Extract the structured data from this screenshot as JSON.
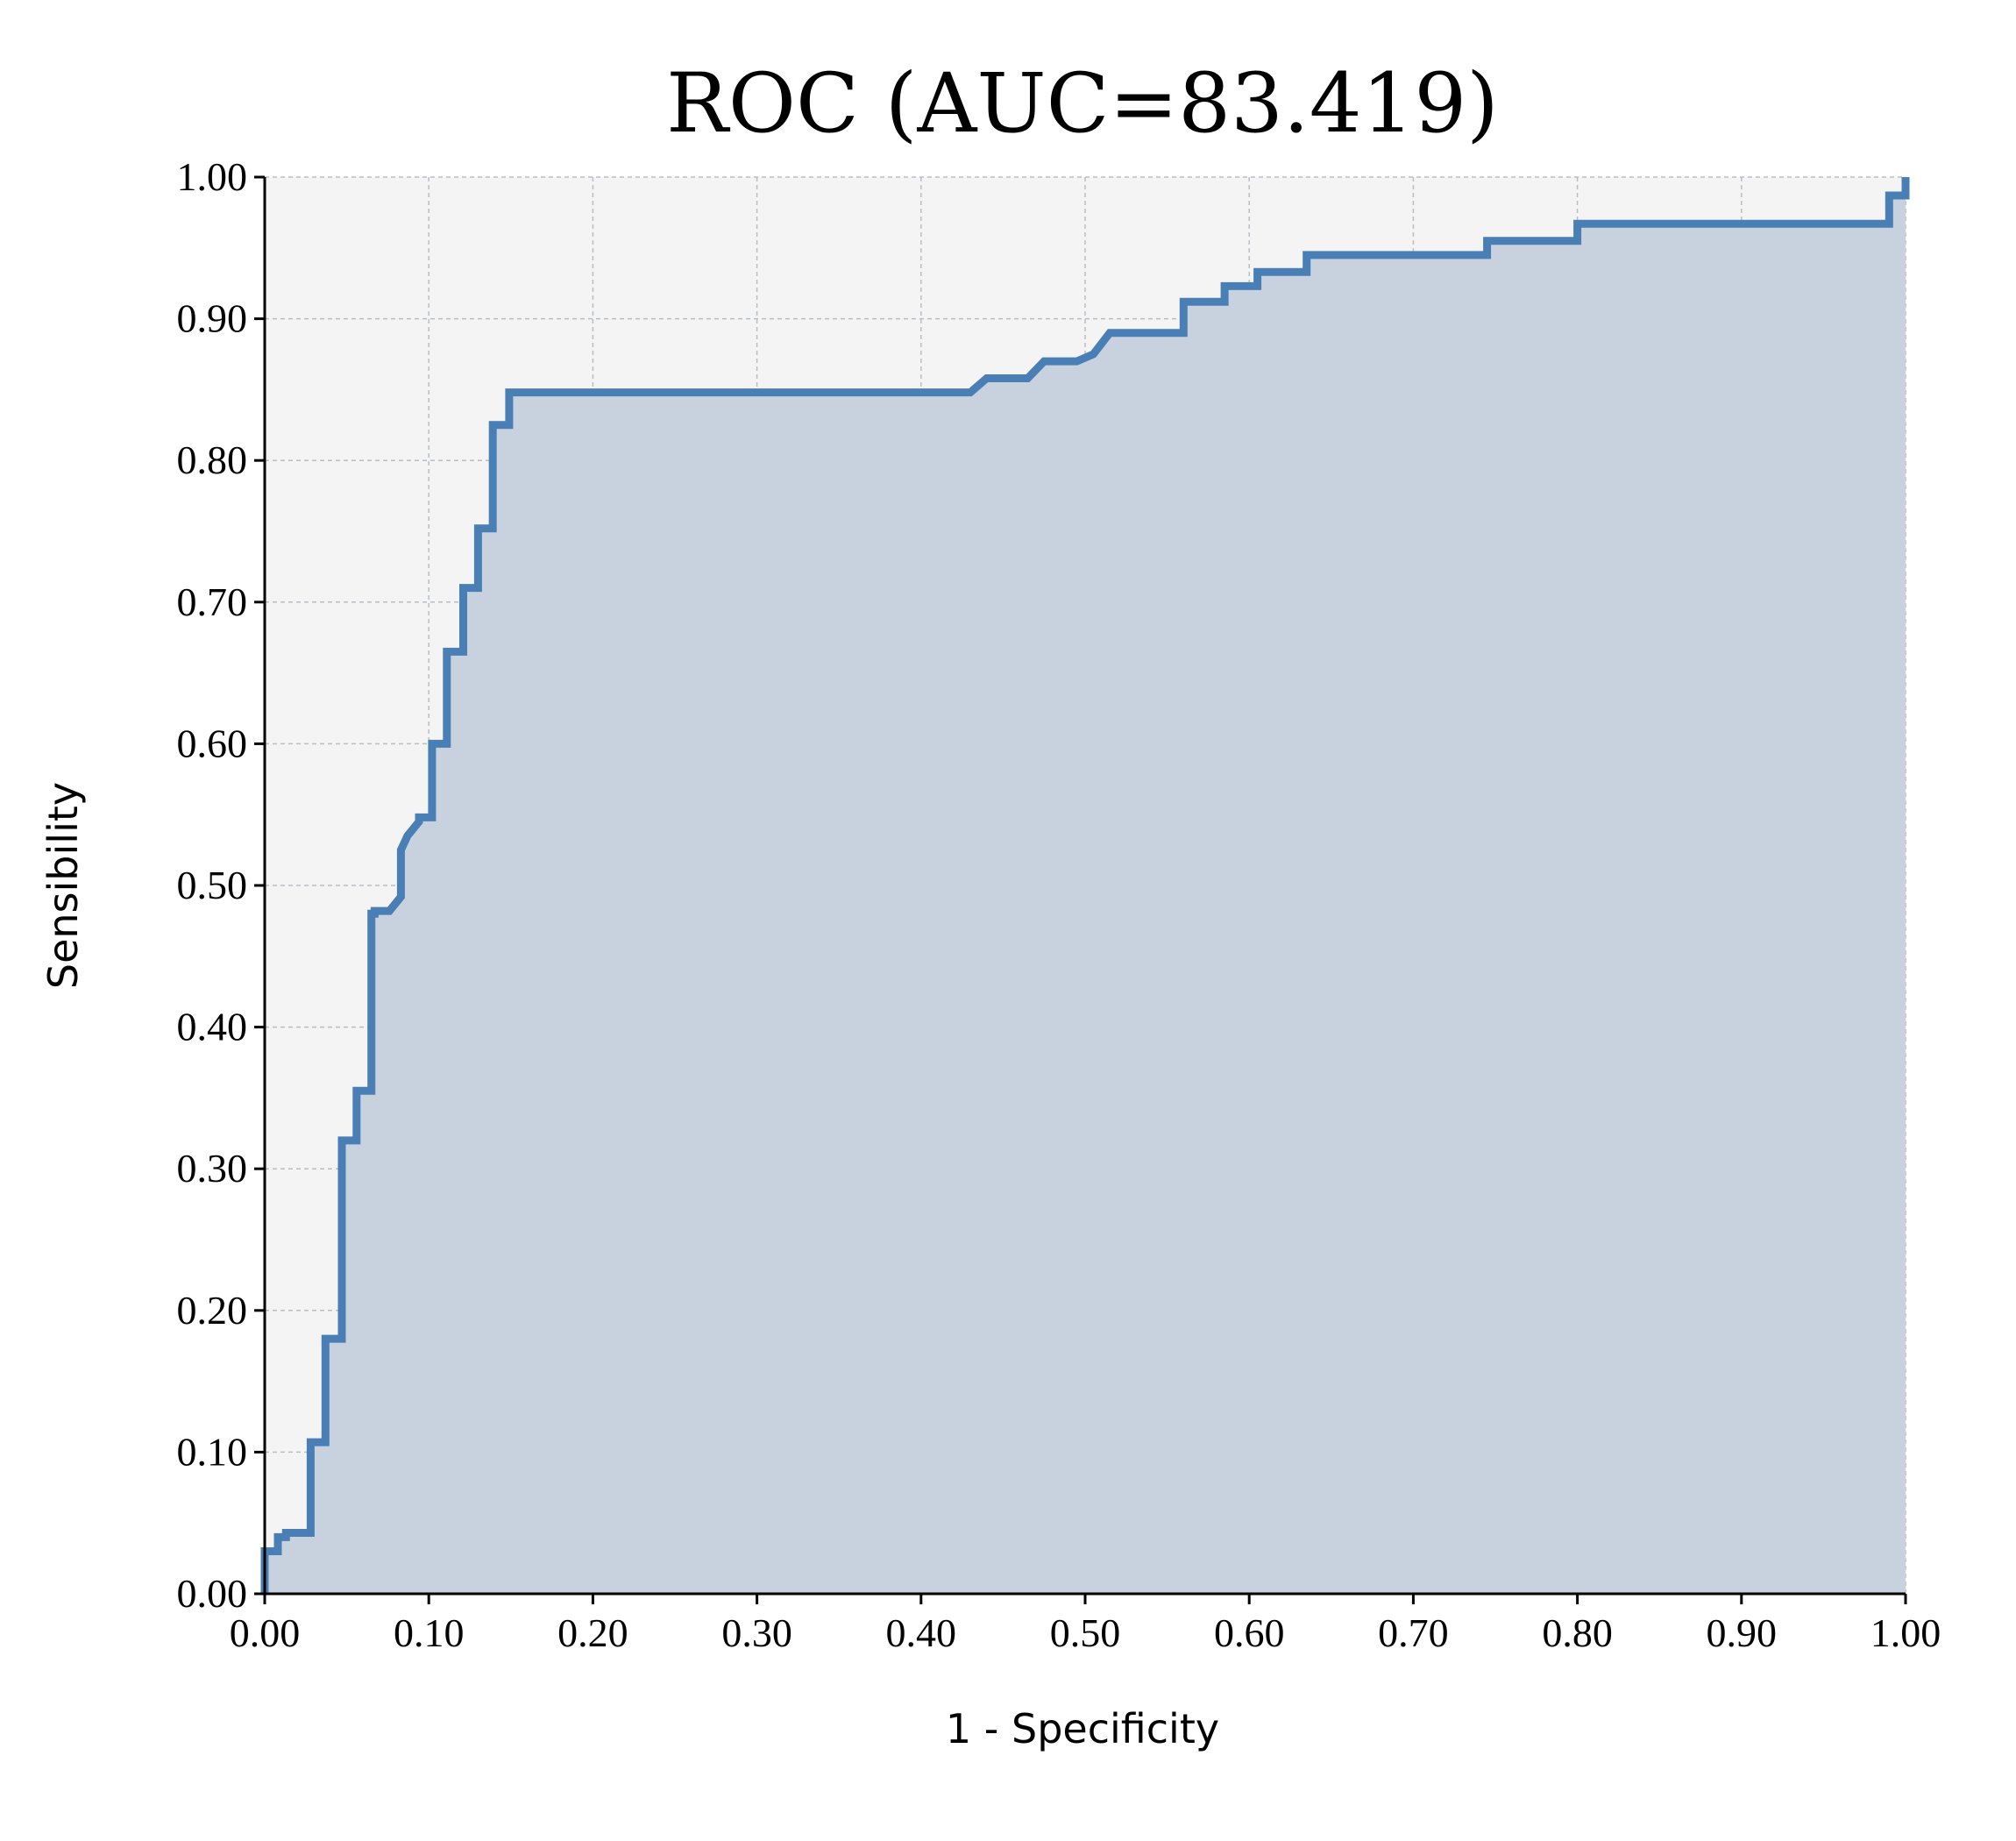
{
  "colors": {
    "curve": "#4a7fb5",
    "fill": "#c8d2de",
    "plot_background": "#f4f4f4",
    "grid": "#b9bec4"
  },
  "chart_data": {
    "type": "area",
    "title": "ROC (AUC=83.419)",
    "xlabel": "1 - Specificity",
    "ylabel": "Sensibility",
    "xlim": [
      0,
      1
    ],
    "ylim": [
      0,
      1
    ],
    "grid": true,
    "xticks": [
      "0.00",
      "0.10",
      "0.20",
      "0.30",
      "0.40",
      "0.50",
      "0.60",
      "0.70",
      "0.80",
      "0.90",
      "1.00"
    ],
    "yticks": [
      "0.00",
      "0.10",
      "0.20",
      "0.30",
      "0.40",
      "0.50",
      "0.60",
      "0.70",
      "0.80",
      "0.90",
      "1.00"
    ],
    "series": [
      {
        "x": [
          0.0,
          0.0,
          0.008,
          0.008,
          0.013,
          0.013,
          0.028,
          0.028,
          0.037,
          0.037,
          0.047,
          0.047,
          0.056,
          0.056,
          0.065,
          0.065,
          0.067,
          0.067,
          0.076,
          0.083,
          0.083,
          0.087,
          0.094,
          0.094,
          0.102,
          0.102,
          0.111,
          0.111,
          0.121,
          0.121,
          0.13,
          0.13,
          0.139,
          0.139,
          0.149,
          0.149,
          0.42,
          0.43,
          0.44,
          0.465,
          0.475,
          0.475,
          0.495,
          0.505,
          0.515,
          0.515,
          0.56,
          0.56,
          0.585,
          0.585,
          0.605,
          0.605,
          0.635,
          0.635,
          0.745,
          0.745,
          0.8,
          0.8,
          0.99,
          0.99,
          1.0,
          1.0
        ],
        "y": [
          0.0,
          0.03,
          0.03,
          0.04,
          0.04,
          0.043,
          0.043,
          0.107,
          0.107,
          0.18,
          0.18,
          0.32,
          0.32,
          0.355,
          0.355,
          0.48,
          0.48,
          0.482,
          0.482,
          0.492,
          0.525,
          0.535,
          0.545,
          0.548,
          0.548,
          0.6,
          0.6,
          0.665,
          0.665,
          0.71,
          0.71,
          0.752,
          0.752,
          0.825,
          0.825,
          0.848,
          0.848,
          0.848,
          0.858,
          0.858,
          0.87,
          0.87,
          0.87,
          0.875,
          0.89,
          0.89,
          0.89,
          0.912,
          0.912,
          0.923,
          0.923,
          0.933,
          0.933,
          0.945,
          0.945,
          0.955,
          0.955,
          0.967,
          0.967,
          0.987,
          0.987,
          1.0
        ]
      }
    ]
  }
}
